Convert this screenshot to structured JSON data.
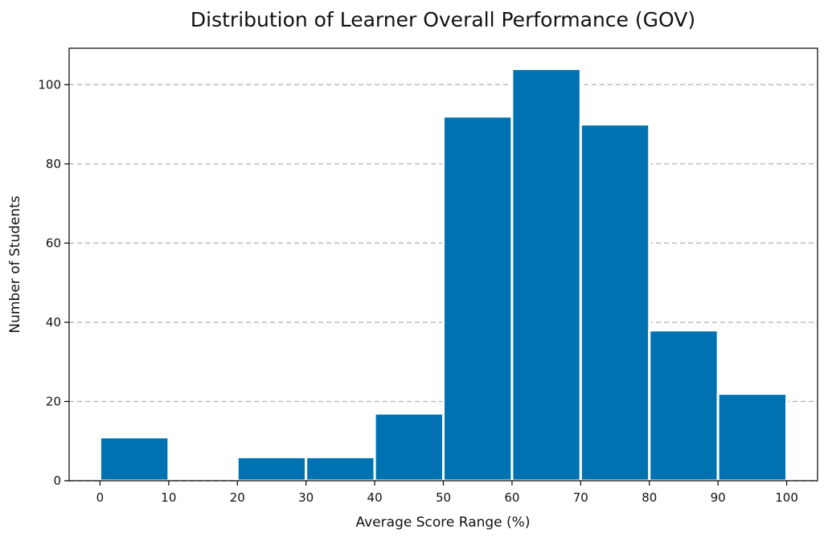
{
  "chart_data": {
    "type": "bar",
    "title": "Distribution of Learner Overall Performance (GOV)",
    "xlabel": "Average Score Range (%)",
    "ylabel": "Number of Students",
    "bar_color": "#0072B2",
    "bins": [
      {
        "start": 0,
        "end": 10,
        "value": 11
      },
      {
        "start": 10,
        "end": 20,
        "value": 0
      },
      {
        "start": 20,
        "end": 30,
        "value": 6
      },
      {
        "start": 30,
        "end": 40,
        "value": 6
      },
      {
        "start": 40,
        "end": 50,
        "value": 17
      },
      {
        "start": 50,
        "end": 60,
        "value": 92
      },
      {
        "start": 60,
        "end": 70,
        "value": 104
      },
      {
        "start": 70,
        "end": 80,
        "value": 90
      },
      {
        "start": 80,
        "end": 90,
        "value": 38
      },
      {
        "start": 90,
        "end": 100,
        "value": 22
      }
    ],
    "xticks": [
      0,
      10,
      20,
      30,
      40,
      50,
      60,
      70,
      80,
      90,
      100
    ],
    "yticks": [
      0,
      20,
      40,
      60,
      80,
      100
    ],
    "xlim": [
      -4.5,
      104.5
    ],
    "ylim": [
      0,
      109.2
    ],
    "grid": "y-dashed",
    "legend": "none"
  }
}
